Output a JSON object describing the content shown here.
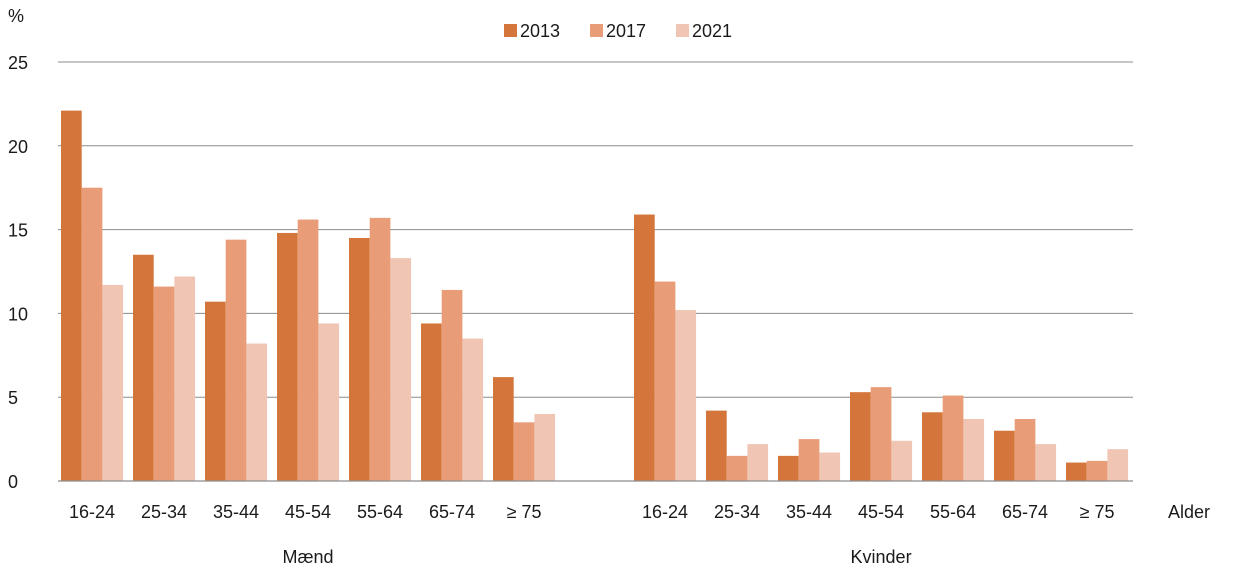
{
  "chart_data": {
    "type": "bar",
    "y_unit_label": "%",
    "x_axis_title": "Alder",
    "ylim": [
      0,
      25
    ],
    "y_ticks": [
      0,
      5,
      10,
      15,
      20,
      25
    ],
    "grid": "horizontal",
    "legend_placement": "top-center",
    "categories": [
      "16-24",
      "25-34",
      "35-44",
      "45-54",
      "55-64",
      "65-74",
      "≥ 75"
    ],
    "groups": [
      {
        "label": "Mænd",
        "series": [
          {
            "name": "2013",
            "values": [
              22.1,
              13.5,
              10.7,
              14.8,
              14.5,
              9.4,
              6.2
            ]
          },
          {
            "name": "2017",
            "values": [
              17.5,
              11.6,
              14.4,
              15.6,
              15.7,
              11.4,
              3.5
            ]
          },
          {
            "name": "2021",
            "values": [
              11.7,
              12.2,
              8.2,
              9.4,
              13.3,
              8.5,
              4.0
            ]
          }
        ]
      },
      {
        "label": "Kvinder",
        "series": [
          {
            "name": "2013",
            "values": [
              15.9,
              4.2,
              1.5,
              5.3,
              4.1,
              3.0,
              1.1
            ]
          },
          {
            "name": "2017",
            "values": [
              11.9,
              1.5,
              2.5,
              5.6,
              5.1,
              3.7,
              1.2
            ]
          },
          {
            "name": "2021",
            "values": [
              10.2,
              2.2,
              1.7,
              2.4,
              3.7,
              2.2,
              1.9
            ]
          }
        ]
      }
    ],
    "colors": {
      "2013": "#D4763B",
      "2017": "#E89D78",
      "2021": "#F0C5B3",
      "grid": "#8c8c8c",
      "axis": "#8c8c8c"
    }
  }
}
